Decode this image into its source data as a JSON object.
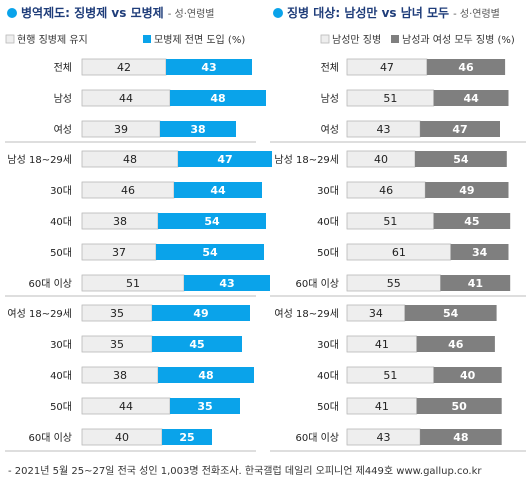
{
  "colors": {
    "blue": "#0aa3ea",
    "gray": "#7f7f7f",
    "light": "#eeeeee",
    "light_border": "#b8b8b8",
    "divider": "#bdbdbd"
  },
  "footer": "- 2021년 5월 25~27일 전국 성인 1,003명 전화조사. 한국갤럽 데일리 오피니언 제449호 www.gallup.co.kr",
  "chart_data": [
    {
      "type": "bar",
      "title": "병역제도: 징병제 vs 모병제",
      "subtitle": "- 성·연령별",
      "legend": [
        "현행 징병제 유지",
        "모병제 전면 도입 (%)"
      ],
      "categories": [
        "전체",
        "남성",
        "여성",
        "남성 18~29세",
        "30대",
        "40대",
        "50대",
        "60대 이상",
        "여성 18~29세",
        "30대",
        "40대",
        "50대",
        "60대 이상"
      ],
      "series": [
        {
          "name": "현행 징병제 유지",
          "values": [
            42,
            44,
            39,
            48,
            46,
            38,
            37,
            51,
            35,
            35,
            38,
            44,
            40
          ]
        },
        {
          "name": "모병제 전면 도입 (%)",
          "values": [
            43,
            48,
            38,
            47,
            44,
            54,
            54,
            43,
            49,
            45,
            48,
            35,
            25
          ]
        }
      ]
    },
    {
      "type": "bar",
      "title": "징병 대상: 남성만 vs 남녀 모두",
      "subtitle": "- 성·연령별",
      "legend": [
        "남성만 징병",
        "남성과 여성 모두 징병 (%)"
      ],
      "categories": [
        "전체",
        "남성",
        "여성",
        "남성 18~29세",
        "30대",
        "40대",
        "50대",
        "60대 이상",
        "여성 18~29세",
        "30대",
        "40대",
        "50대",
        "60대 이상"
      ],
      "series": [
        {
          "name": "남성만 징병",
          "values": [
            47,
            51,
            43,
            40,
            46,
            51,
            61,
            55,
            34,
            41,
            51,
            41,
            43
          ]
        },
        {
          "name": "남성과 여성 모두 징병 (%)",
          "values": [
            46,
            44,
            47,
            54,
            49,
            45,
            34,
            41,
            54,
            46,
            40,
            50,
            48
          ]
        }
      ]
    }
  ]
}
